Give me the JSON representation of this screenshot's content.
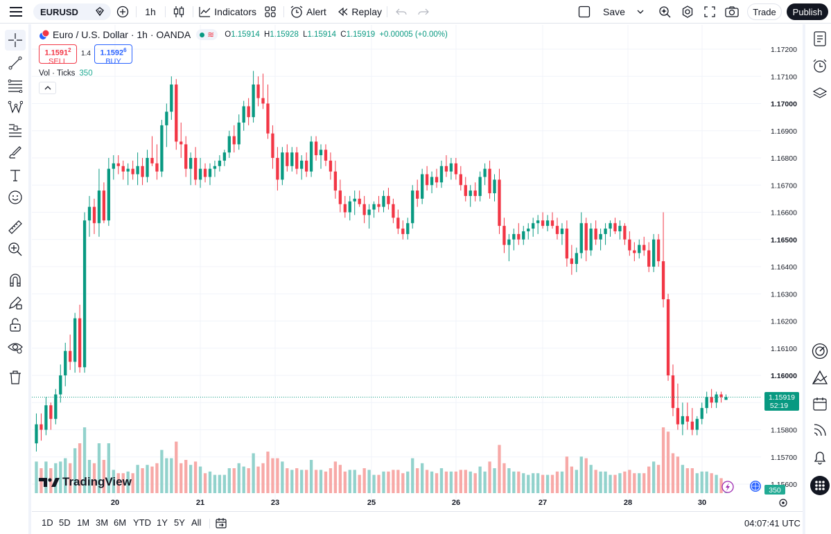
{
  "toolbar": {
    "symbol": "EURUSD",
    "interval": "1h",
    "indicators_label": "Indicators",
    "alert_label": "Alert",
    "replay_label": "Replay",
    "save_label": "Save",
    "trade_label": "Trade",
    "publish_label": "Publish"
  },
  "legend": {
    "title": "Euro / U.S. Dollar · 1h · OANDA",
    "o_label": "O",
    "o": "1.15914",
    "h_label": "H",
    "h": "1.15928",
    "l_label": "L",
    "l": "1.15914",
    "c_label": "C",
    "c": "1.15919",
    "change": "+0.00005 (+0.00%)",
    "sell_price_main": "1.1591",
    "sell_price_sup": "2",
    "sell_label": "SELL",
    "spread": "1.4",
    "buy_price_main": "1.1592",
    "buy_price_sup": "6",
    "buy_label": "BUY",
    "vol_label": "Vol · Ticks",
    "vol_value": "350"
  },
  "watermark": "TradingView",
  "price_axis": {
    "labels": [
      "1.17200",
      "1.17100",
      "1.17000",
      "1.16900",
      "1.16800",
      "1.16700",
      "1.16600",
      "1.16500",
      "1.16400",
      "1.16300",
      "1.16200",
      "1.16100",
      "1.16000",
      "1.15900",
      "1.15800",
      "1.15700",
      "1.15600"
    ],
    "bold_labels": [
      "1.17000",
      "1.16500",
      "1.16000"
    ],
    "current_price": "1.15919",
    "countdown": "52:19",
    "volume_badge": "350"
  },
  "time_axis": {
    "labels": [
      "20",
      "21",
      "23",
      "25",
      "26",
      "27",
      "28",
      "30"
    ]
  },
  "ranges": [
    "1D",
    "5D",
    "1M",
    "3M",
    "6M",
    "YTD",
    "1Y",
    "5Y",
    "All"
  ],
  "clock": "04:07:41 UTC",
  "colors": {
    "up": "#089981",
    "down": "#f23645",
    "up_vol": "#92d2cc",
    "down_vol": "#f7a9a7"
  },
  "chart_data": {
    "type": "candlestick",
    "instrument": "EURUSD",
    "interval": "1h",
    "ylim": [
      1.156,
      1.1722
    ],
    "x_ticks": [
      "20",
      "21",
      "23",
      "25",
      "26",
      "27",
      "28",
      "30"
    ],
    "ohlc": [
      [
        1.1575,
        1.1586,
        1.1572,
        1.1582
      ],
      [
        1.1582,
        1.1586,
        1.1576,
        1.158
      ],
      [
        1.158,
        1.1592,
        1.1578,
        1.1589
      ],
      [
        1.1589,
        1.159,
        1.158,
        1.1584
      ],
      [
        1.1584,
        1.1595,
        1.1582,
        1.1593
      ],
      [
        1.1593,
        1.1604,
        1.159,
        1.16
      ],
      [
        1.16,
        1.1612,
        1.1596,
        1.1609
      ],
      [
        1.1609,
        1.1615,
        1.1602,
        1.1605
      ],
      [
        1.1605,
        1.1623,
        1.1601,
        1.1621
      ],
      [
        1.1621,
        1.1626,
        1.1601,
        1.1603
      ],
      [
        1.1603,
        1.166,
        1.1601,
        1.1657
      ],
      [
        1.1657,
        1.1666,
        1.1651,
        1.1662
      ],
      [
        1.1662,
        1.1665,
        1.1652,
        1.1656
      ],
      [
        1.1656,
        1.1676,
        1.1651,
        1.1668
      ],
      [
        1.1668,
        1.1671,
        1.1656,
        1.1657
      ],
      [
        1.1657,
        1.168,
        1.1655,
        1.1676
      ],
      [
        1.1676,
        1.1681,
        1.1672,
        1.1678
      ],
      [
        1.1678,
        1.1681,
        1.1674,
        1.1677
      ],
      [
        1.1677,
        1.1679,
        1.1672,
        1.1675
      ],
      [
        1.1675,
        1.1678,
        1.167,
        1.1676
      ],
      [
        1.1676,
        1.1679,
        1.1672,
        1.1674
      ],
      [
        1.1674,
        1.1682,
        1.167,
        1.1677
      ],
      [
        1.1677,
        1.168,
        1.167,
        1.1673
      ],
      [
        1.1673,
        1.1683,
        1.1671,
        1.168
      ],
      [
        1.168,
        1.1688,
        1.1677,
        1.1678
      ],
      [
        1.1678,
        1.1685,
        1.1672,
        1.1675
      ],
      [
        1.1675,
        1.1694,
        1.1673,
        1.1692
      ],
      [
        1.1692,
        1.17,
        1.1684,
        1.1697
      ],
      [
        1.1697,
        1.171,
        1.1694,
        1.1707
      ],
      [
        1.1707,
        1.1709,
        1.1683,
        1.1686
      ],
      [
        1.1686,
        1.1693,
        1.168,
        1.1685
      ],
      [
        1.1685,
        1.1688,
        1.1673,
        1.1676
      ],
      [
        1.1676,
        1.1682,
        1.167,
        1.168
      ],
      [
        1.168,
        1.1684,
        1.167,
        1.1672
      ],
      [
        1.1672,
        1.168,
        1.1669,
        1.1676
      ],
      [
        1.1676,
        1.1678,
        1.1671,
        1.1673
      ],
      [
        1.1673,
        1.1678,
        1.167,
        1.1676
      ],
      [
        1.1676,
        1.1679,
        1.1673,
        1.1677
      ],
      [
        1.1677,
        1.1681,
        1.1675,
        1.1679
      ],
      [
        1.1679,
        1.1683,
        1.1677,
        1.1682
      ],
      [
        1.1682,
        1.169,
        1.168,
        1.1688
      ],
      [
        1.1688,
        1.1692,
        1.1682,
        1.1685
      ],
      [
        1.1685,
        1.1696,
        1.1683,
        1.1693
      ],
      [
        1.1693,
        1.1701,
        1.169,
        1.1699
      ],
      [
        1.1699,
        1.1702,
        1.1692,
        1.1695
      ],
      [
        1.1695,
        1.1712,
        1.1693,
        1.1707
      ],
      [
        1.1707,
        1.171,
        1.1699,
        1.1702
      ],
      [
        1.1702,
        1.1711,
        1.1698,
        1.17
      ],
      [
        1.17,
        1.1707,
        1.1687,
        1.1689
      ],
      [
        1.1689,
        1.1692,
        1.1676,
        1.168
      ],
      [
        1.168,
        1.1684,
        1.1668,
        1.1672
      ],
      [
        1.1672,
        1.1684,
        1.167,
        1.1682
      ],
      [
        1.1682,
        1.1685,
        1.1675,
        1.1677
      ],
      [
        1.1677,
        1.1684,
        1.1675,
        1.1682
      ],
      [
        1.1682,
        1.1684,
        1.1674,
        1.1676
      ],
      [
        1.1676,
        1.1681,
        1.1672,
        1.1679
      ],
      [
        1.1679,
        1.1682,
        1.1673,
        1.1675
      ],
      [
        1.1675,
        1.1688,
        1.1673,
        1.1686
      ],
      [
        1.1686,
        1.1688,
        1.1679,
        1.1681
      ],
      [
        1.1681,
        1.1685,
        1.1676,
        1.1683
      ],
      [
        1.1683,
        1.1685,
        1.1677,
        1.1679
      ],
      [
        1.1679,
        1.1682,
        1.1672,
        1.1675
      ],
      [
        1.1675,
        1.1679,
        1.1665,
        1.1668
      ],
      [
        1.1668,
        1.1672,
        1.166,
        1.1663
      ],
      [
        1.1663,
        1.1666,
        1.1658,
        1.166
      ],
      [
        1.166,
        1.1666,
        1.1657,
        1.1664
      ],
      [
        1.1664,
        1.1668,
        1.1659,
        1.1665
      ],
      [
        1.1665,
        1.1668,
        1.1662,
        1.1663
      ],
      [
        1.1663,
        1.1666,
        1.1656,
        1.1659
      ],
      [
        1.1659,
        1.1663,
        1.1654,
        1.1661
      ],
      [
        1.1661,
        1.1664,
        1.1658,
        1.1663
      ],
      [
        1.1663,
        1.1666,
        1.166,
        1.1662
      ],
      [
        1.1662,
        1.1668,
        1.166,
        1.1666
      ],
      [
        1.1666,
        1.1669,
        1.1661,
        1.1663
      ],
      [
        1.1663,
        1.1665,
        1.1656,
        1.1658
      ],
      [
        1.1658,
        1.1661,
        1.1652,
        1.1654
      ],
      [
        1.1654,
        1.1657,
        1.165,
        1.1652
      ],
      [
        1.1652,
        1.1658,
        1.165,
        1.1656
      ],
      [
        1.1656,
        1.167,
        1.1654,
        1.1668
      ],
      [
        1.1668,
        1.1672,
        1.1662,
        1.1665
      ],
      [
        1.1665,
        1.1676,
        1.1663,
        1.1674
      ],
      [
        1.1674,
        1.1677,
        1.1668,
        1.167
      ],
      [
        1.167,
        1.1675,
        1.1667,
        1.1673
      ],
      [
        1.1673,
        1.1676,
        1.1669,
        1.1671
      ],
      [
        1.1671,
        1.1679,
        1.1669,
        1.1677
      ],
      [
        1.1677,
        1.1681,
        1.1673,
        1.1675
      ],
      [
        1.1675,
        1.168,
        1.1672,
        1.1678
      ],
      [
        1.1678,
        1.168,
        1.1672,
        1.1674
      ],
      [
        1.1674,
        1.1677,
        1.1668,
        1.167
      ],
      [
        1.167,
        1.1673,
        1.1664,
        1.1666
      ],
      [
        1.1666,
        1.167,
        1.1662,
        1.1668
      ],
      [
        1.1668,
        1.1671,
        1.1664,
        1.1666
      ],
      [
        1.1666,
        1.1675,
        1.1664,
        1.1673
      ],
      [
        1.1673,
        1.1678,
        1.167,
        1.1676
      ],
      [
        1.1676,
        1.1679,
        1.1665,
        1.1667
      ],
      [
        1.1667,
        1.1674,
        1.1664,
        1.1672
      ],
      [
        1.1672,
        1.1676,
        1.1652,
        1.1655
      ],
      [
        1.1655,
        1.1658,
        1.1645,
        1.1648
      ],
      [
        1.1648,
        1.1652,
        1.1642,
        1.165
      ],
      [
        1.165,
        1.1654,
        1.1646,
        1.1652
      ],
      [
        1.1652,
        1.1656,
        1.1648,
        1.165
      ],
      [
        1.165,
        1.1655,
        1.1648,
        1.1653
      ],
      [
        1.1653,
        1.1656,
        1.165,
        1.1654
      ],
      [
        1.1654,
        1.1658,
        1.1651,
        1.1656
      ],
      [
        1.1656,
        1.1659,
        1.1652,
        1.1657
      ],
      [
        1.1657,
        1.166,
        1.1654,
        1.1655
      ],
      [
        1.1655,
        1.1659,
        1.1653,
        1.1657
      ],
      [
        1.1657,
        1.166,
        1.1654,
        1.1655
      ],
      [
        1.1655,
        1.1658,
        1.165,
        1.1652
      ],
      [
        1.1652,
        1.1656,
        1.1648,
        1.1654
      ],
      [
        1.1654,
        1.1657,
        1.164,
        1.1643
      ],
      [
        1.1643,
        1.1648,
        1.1637,
        1.1641
      ],
      [
        1.1641,
        1.1647,
        1.1638,
        1.1645
      ],
      [
        1.1645,
        1.166,
        1.1643,
        1.1656
      ],
      [
        1.1656,
        1.1658,
        1.1642,
        1.1646
      ],
      [
        1.1646,
        1.1656,
        1.1644,
        1.1654
      ],
      [
        1.1654,
        1.1657,
        1.1648,
        1.165
      ],
      [
        1.165,
        1.1654,
        1.1646,
        1.1652
      ],
      [
        1.1652,
        1.1656,
        1.1648,
        1.1654
      ],
      [
        1.1654,
        1.1657,
        1.1651,
        1.1656
      ],
      [
        1.1656,
        1.1658,
        1.1652,
        1.1653
      ],
      [
        1.1653,
        1.1657,
        1.165,
        1.1655
      ],
      [
        1.1655,
        1.1656,
        1.1648,
        1.165
      ],
      [
        1.165,
        1.1653,
        1.1644,
        1.1646
      ],
      [
        1.1646,
        1.1649,
        1.1642,
        1.1645
      ],
      [
        1.1645,
        1.165,
        1.1643,
        1.1648
      ],
      [
        1.1648,
        1.1651,
        1.1644,
        1.1646
      ],
      [
        1.1646,
        1.1649,
        1.1638,
        1.164
      ],
      [
        1.164,
        1.1652,
        1.1638,
        1.165
      ],
      [
        1.165,
        1.1652,
        1.164,
        1.1642
      ],
      [
        1.1642,
        1.166,
        1.1625,
        1.1628
      ],
      [
        1.1628,
        1.163,
        1.1598,
        1.16
      ],
      [
        1.16,
        1.1604,
        1.1585,
        1.1588
      ],
      [
        1.1588,
        1.1597,
        1.158,
        1.1582
      ],
      [
        1.1582,
        1.159,
        1.1578,
        1.1585
      ],
      [
        1.1585,
        1.159,
        1.158,
        1.1583
      ],
      [
        1.1583,
        1.1588,
        1.1578,
        1.158
      ],
      [
        1.158,
        1.1585,
        1.1578,
        1.1584
      ],
      [
        1.1584,
        1.159,
        1.1582,
        1.1588
      ],
      [
        1.1588,
        1.1594,
        1.1586,
        1.1592
      ],
      [
        1.1592,
        1.1595,
        1.1588,
        1.159
      ],
      [
        1.159,
        1.1594,
        1.1588,
        1.1593
      ],
      [
        1.1593,
        1.1594,
        1.159,
        1.1592
      ],
      [
        1.1591,
        1.1593,
        1.1591,
        1.1592
      ]
    ]
  }
}
